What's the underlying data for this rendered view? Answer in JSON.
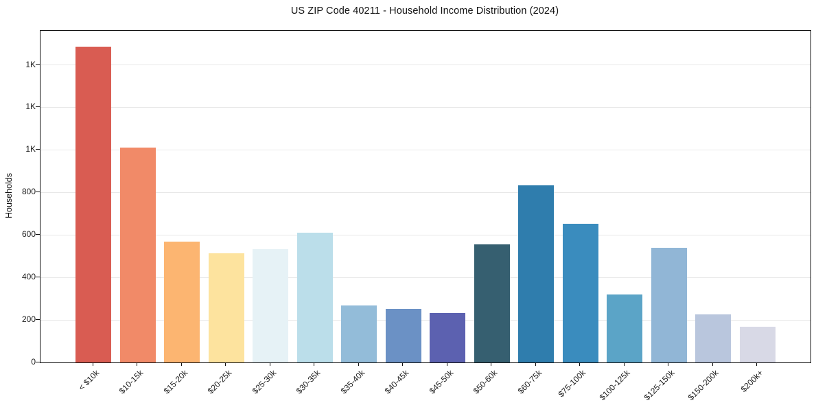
{
  "window": {
    "title": "US ZIP Code 40211 - Household Income Distribution (2024)"
  },
  "chart_data": {
    "type": "bar",
    "title": "US ZIP Code 40211 - Household Income Distribution (2024)",
    "xlabel": "",
    "ylabel": "Households",
    "categories": [
      "< $10k",
      "$10-15k",
      "$15-20k",
      "$20-25k",
      "$25-30k",
      "$30-35k",
      "$35-40k",
      "$40-45k",
      "$45-50k",
      "$50-60k",
      "$60-75k",
      "$75-100k",
      "$100-125k",
      "$125-150k",
      "$150-200k",
      "$200k+"
    ],
    "values": [
      1485,
      1012,
      569,
      514,
      533,
      609,
      268,
      251,
      234,
      557,
      832,
      651,
      321,
      538,
      226,
      168
    ],
    "bar_colors": [
      "#d95c52",
      "#f18a68",
      "#fcb571",
      "#fde39e",
      "#e6f2f6",
      "#bbdeea",
      "#93bcd9",
      "#6b91c5",
      "#5c61b0",
      "#365f70",
      "#2f7dad",
      "#3a8cbe",
      "#5ba4c7",
      "#91b6d6",
      "#b9c6dd",
      "#d8d9e6"
    ],
    "ylim": [
      0,
      1560
    ],
    "yticks": [
      {
        "value": 0,
        "label": "0"
      },
      {
        "value": 200,
        "label": "200"
      },
      {
        "value": 400,
        "label": "400"
      },
      {
        "value": 600,
        "label": "600"
      },
      {
        "value": 800,
        "label": "800"
      },
      {
        "value": 1000,
        "label": "1K"
      },
      {
        "value": 1200,
        "label": "1K"
      },
      {
        "value": 1400,
        "label": "1K"
      }
    ],
    "grid": "horizontal",
    "grid_color": "#e8e8e8",
    "legend_position": "none"
  }
}
